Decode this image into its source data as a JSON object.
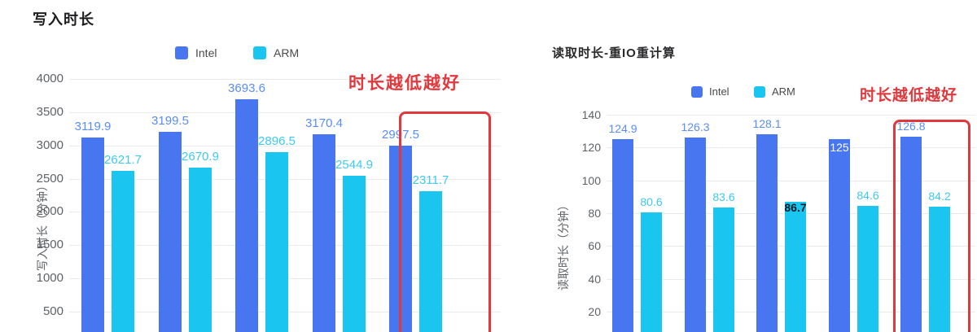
{
  "header": {
    "title": "写入时长"
  },
  "colors": {
    "intel": "#4876F0",
    "arm": "#1AC5F0",
    "intel_label": "#5A8DF8",
    "arm_label": "#3EC9F0",
    "inside_label": "#FFFFFF",
    "dark_label": "#111C26",
    "red": "#E0383C",
    "grid": "#EBEBEB",
    "tick_text": "#5E6266",
    "legend_text": "#4A4A4A"
  },
  "chart_data": [
    {
      "type": "bar",
      "title": "写入时长",
      "ylabel": "写入时长（分钟）",
      "legend_position": "top",
      "grid": true,
      "ylim": [
        0,
        4000
      ],
      "y_ticks": [
        4000,
        3500,
        3000,
        2500,
        2000,
        1500,
        1000,
        500
      ],
      "series": [
        {
          "name": "Intel",
          "color": "#4876F0",
          "label_color": "#5A8DF8",
          "values": [
            3119.9,
            3199.5,
            3693.6,
            3170.4,
            2997.5
          ]
        },
        {
          "name": "ARM",
          "color": "#1AC5F0",
          "label_color": "#3EC9F0",
          "values": [
            2621.7,
            2670.9,
            2896.5,
            2544.9,
            2311.7
          ]
        }
      ],
      "annotation": "时长越低越好",
      "highlight": "last-group-red-box"
    },
    {
      "type": "bar",
      "title": "读取时长-重IO重计算",
      "ylabel": "读取时长（分钟）",
      "legend_position": "top",
      "grid": true,
      "ylim": [
        0,
        140
      ],
      "y_ticks": [
        140,
        120,
        100,
        80,
        60,
        40,
        20
      ],
      "series": [
        {
          "name": "Intel",
          "color": "#4876F0",
          "label_color": "#5A8DF8",
          "values": [
            124.9,
            126.3,
            128.1,
            125,
            126.8
          ]
        },
        {
          "name": "ARM",
          "color": "#1AC5F0",
          "label_color": "#3EC9F0",
          "values": [
            80.6,
            83.6,
            86.7,
            84.6,
            84.2
          ]
        }
      ],
      "label_modes": [
        [
          "above",
          "above",
          "above",
          "inside",
          "above"
        ],
        [
          "above",
          "above",
          "dark",
          "above",
          "above"
        ]
      ],
      "annotation": "时长越低越好",
      "highlight": "last-group-red-box"
    }
  ]
}
